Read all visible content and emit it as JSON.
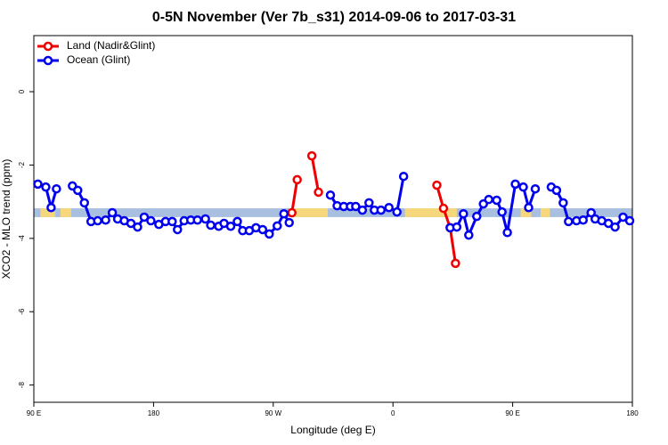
{
  "chart_data": {
    "type": "line",
    "title": "0-5N November (Ver 7b_s31)   2014-09-06 to 2017-03-31",
    "x_label": "Longitude (deg E)",
    "y_label": "XCO2 - MLO trend (ppm)",
    "xlim": [
      90,
      540
    ],
    "xticks": [
      {
        "value": 90,
        "label": "90 E"
      },
      {
        "value": 180,
        "label": "180"
      },
      {
        "value": 270,
        "label": "90 W"
      },
      {
        "value": 360,
        "label": "0"
      },
      {
        "value": 450,
        "label": "90 E"
      },
      {
        "value": 540,
        "label": "180"
      }
    ],
    "ylim": [
      -8.47,
      1.53
    ],
    "yticks": [
      -8,
      -6,
      -4,
      -2,
      0
    ],
    "legend": "top-left",
    "band": {
      "ylim": [
        -3.42,
        -3.18
      ],
      "color": "#a9bfe0",
      "land_color": "#f7d77c",
      "land_x": [
        [
          95,
          106
        ],
        [
          110,
          118
        ],
        [
          286,
          311
        ],
        [
          369,
          408
        ],
        [
          456,
          464
        ],
        [
          471,
          478
        ]
      ]
    },
    "series": [
      {
        "name": "Land (Nadir&Glint)",
        "color": "#ee0000",
        "x": [
          284,
          288,
          null,
          299,
          304,
          null,
          393,
          398,
          403,
          407
        ],
        "values": [
          -3.3,
          -2.4,
          null,
          -1.75,
          -2.74,
          null,
          -2.55,
          -3.18,
          -3.71,
          -4.68
        ]
      },
      {
        "name": "Ocean (Glint)",
        "color": "#0000ee",
        "x": [
          93,
          99,
          103,
          107,
          null,
          119,
          123,
          128,
          133,
          138,
          144,
          149,
          153,
          158,
          163,
          168,
          173,
          178,
          184,
          189,
          194,
          198,
          203,
          208,
          213,
          219,
          223,
          229,
          233,
          238,
          243,
          247,
          252,
          257,
          262,
          267,
          273,
          278,
          282,
          null,
          313,
          318,
          323,
          328,
          332,
          337,
          342,
          346,
          351,
          357,
          363,
          368,
          null,
          403,
          408,
          413,
          417,
          423,
          428,
          432,
          438,
          442,
          446,
          452,
          458,
          462,
          467,
          null,
          479,
          483,
          488,
          492,
          498,
          503,
          509,
          512,
          517,
          522,
          527,
          533,
          538
        ],
        "values": [
          -2.52,
          -2.6,
          -3.16,
          -2.65,
          null,
          -2.57,
          -2.69,
          -3.03,
          -3.54,
          -3.52,
          -3.5,
          -3.3,
          -3.47,
          -3.52,
          -3.59,
          -3.69,
          -3.42,
          -3.52,
          -3.62,
          -3.54,
          -3.54,
          -3.76,
          -3.52,
          -3.5,
          -3.5,
          -3.47,
          -3.64,
          -3.67,
          -3.59,
          -3.67,
          -3.54,
          -3.79,
          -3.79,
          -3.71,
          -3.76,
          -3.88,
          -3.66,
          -3.33,
          -3.57,
          null,
          -2.82,
          -3.11,
          -3.13,
          -3.13,
          -3.13,
          -3.23,
          -3.03,
          -3.23,
          -3.23,
          -3.16,
          -3.28,
          -2.31,
          null,
          -3.71,
          -3.69,
          -3.33,
          -3.91,
          -3.4,
          -3.06,
          -2.94,
          -2.96,
          -3.28,
          -3.84,
          -2.52,
          -2.6,
          -3.16,
          -2.65,
          null,
          -2.6,
          -2.69,
          -3.03,
          -3.54,
          -3.52,
          -3.5,
          -3.3,
          -3.47,
          -3.52,
          -3.59,
          -3.69,
          -3.42,
          -3.52
        ]
      }
    ]
  }
}
